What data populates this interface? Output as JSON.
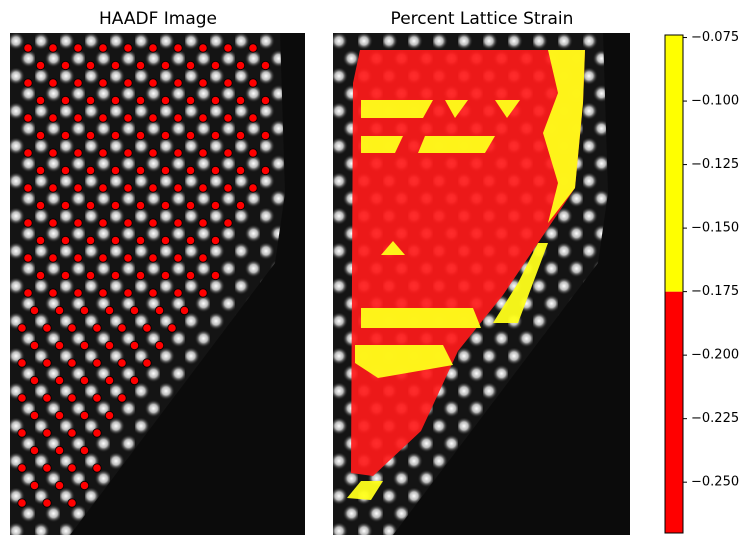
{
  "chart_data": [
    {
      "type": "image",
      "title": "HAADF Image"
    },
    {
      "type": "strain-map",
      "title": "Percent Lattice Strain",
      "colorbar": {
        "ylim": [
          -0.27,
          -0.074
        ],
        "boundaries": [
          -0.27,
          -0.175,
          -0.074
        ],
        "colors": [
          "#ff0000",
          "#ffff00"
        ],
        "yticks": [
          {
            "value": -0.075,
            "label": "−0.075"
          },
          {
            "value": -0.1,
            "label": "−0.100"
          },
          {
            "value": -0.125,
            "label": "−0.125"
          },
          {
            "value": -0.15,
            "label": "−0.150"
          },
          {
            "value": -0.175,
            "label": "−0.175"
          },
          {
            "value": -0.2,
            "label": "−0.200"
          },
          {
            "value": -0.225,
            "label": "−0.225"
          },
          {
            "value": -0.25,
            "label": "−0.250"
          }
        ]
      }
    }
  ]
}
